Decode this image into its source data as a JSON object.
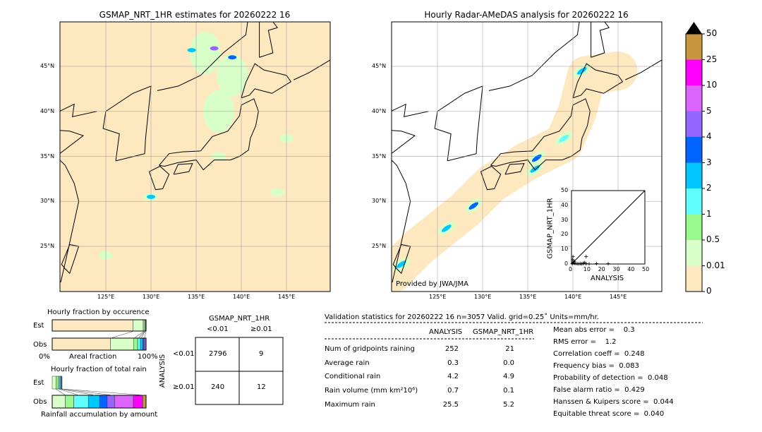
{
  "left_map": {
    "title": "GSMAP_NRT_1HR estimates for 20260222 16"
  },
  "right_map": {
    "title": "Hourly Radar-AMeDAS analysis for 20260222 16",
    "credit": "Provided by JWA/JMA"
  },
  "lat_labels": [
    "45°N",
    "40°N",
    "35°N",
    "30°N",
    "25°N"
  ],
  "lon_labels": [
    "125°E",
    "130°E",
    "135°E",
    "140°E",
    "145°E"
  ],
  "colorbar": {
    "levels": [
      "0",
      "0.01",
      "0.5",
      "1",
      "2",
      "3",
      "4",
      "5",
      "10",
      "25",
      "50"
    ],
    "colors": [
      "#fee8c0",
      "#d8ffc8",
      "#98fa8c",
      "#60fefe",
      "#00c8fe",
      "#0064ff",
      "#9664ff",
      "#dc64ff",
      "#ff00ff",
      "#c8963c"
    ],
    "extend_color": "#000000"
  },
  "scatter": {
    "xlabel": "ANALYSIS",
    "ylabel": "GSMAP_NRT_1HR",
    "ticks": [
      "0",
      "10",
      "20",
      "30",
      "40",
      "50"
    ]
  },
  "occurrence": {
    "title": "Hourly fraction by occurence",
    "est": "Est",
    "obs": "Obs",
    "x0": "0%",
    "x1": "100%",
    "xlabel": "Areal fraction",
    "est_fractions": [
      0.86,
      0.11,
      0.015,
      0.01,
      0.005
    ],
    "obs_fractions": [
      0.62,
      0.25,
      0.04,
      0.03,
      0.025,
      0.015,
      0.02
    ]
  },
  "total_rain": {
    "title": "Hourly fraction of total rain",
    "est": "Est",
    "obs": "Obs",
    "xlabel": "Rainfall accumulation by amount",
    "est_fractions": [
      0.04,
      0.025,
      0.015,
      0.015,
      0.01
    ],
    "obs_fractions": [
      0.14,
      0.09,
      0.155,
      0.12,
      0.08,
      0.08,
      0.2,
      0.1,
      0.035
    ]
  },
  "contingency": {
    "title": "GSMAP_NRT_1HR",
    "col_labels": [
      "<0.01",
      "≥0.01"
    ],
    "row_title": "ANALYSIS",
    "row_labels": [
      "<0.01",
      "≥0.01"
    ],
    "cells": [
      [
        "2796",
        "9"
      ],
      [
        "240",
        "12"
      ]
    ]
  },
  "stats": {
    "header": "Validation statistics for 20260222 16  n=3057 Valid. grid=0.25˚ Units=mm/hr.",
    "col_headers": [
      "ANALYSIS",
      "GSMAP_NRT_1HR"
    ],
    "rows": [
      {
        "label": "Num of gridpoints raining",
        "a": "252",
        "g": "21"
      },
      {
        "label": "Average rain",
        "a": "0.3",
        "g": "0.0"
      },
      {
        "label": "Conditional rain",
        "a": "4.2",
        "g": "4.9"
      },
      {
        "label": "Rain volume (mm km²10⁶)",
        "a": "0.7",
        "g": "0.1"
      },
      {
        "label": "Maximum rain",
        "a": "25.5",
        "g": "5.2"
      }
    ],
    "scores": [
      "Mean abs error =    0.3",
      "RMS error =    1.2",
      "Correlation coeff =  0.248",
      "Frequency bias =  0.083",
      "Probability of detection =  0.048",
      "False alarm ratio =  0.429",
      "Hanssen & Kuipers score =  0.044",
      "Equitable threat score =  0.040"
    ]
  },
  "chart_data": {
    "type": "scatter",
    "xlabel": "ANALYSIS",
    "ylabel": "GSMAP_NRT_1HR",
    "xlim": [
      0,
      50
    ],
    "ylim": [
      0,
      50
    ],
    "points": [
      [
        0.5,
        0.2
      ],
      [
        1,
        1
      ],
      [
        1.5,
        2
      ],
      [
        2,
        0.5
      ],
      [
        3,
        0.3
      ],
      [
        4,
        0.2
      ],
      [
        5,
        0.1
      ],
      [
        6,
        0.3
      ],
      [
        7,
        0.1
      ],
      [
        8,
        0.5
      ],
      [
        9,
        1
      ],
      [
        10,
        0.2
      ],
      [
        12,
        0.1
      ],
      [
        17,
        0.3
      ],
      [
        1,
        5
      ],
      [
        10,
        5
      ],
      [
        25,
        0.2
      ],
      [
        2,
        1.5
      ],
      [
        0.8,
        3
      ]
    ]
  }
}
